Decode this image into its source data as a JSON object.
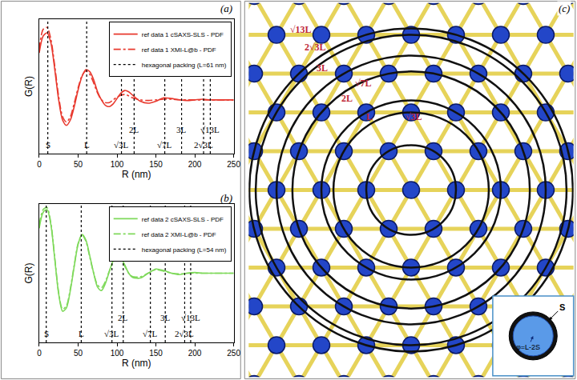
{
  "chart_data": [
    {
      "type": "line",
      "title": "(a)",
      "x_label": "R (nm)",
      "y_label": "G(R)",
      "x": [
        0,
        5,
        10,
        15,
        20,
        25,
        30,
        35,
        40,
        45,
        50,
        55,
        60,
        65,
        70,
        75,
        80,
        85,
        90,
        95,
        100,
        105,
        110,
        115,
        120,
        130,
        140,
        150,
        160,
        170,
        180,
        190,
        200,
        210,
        220,
        230,
        240,
        250
      ],
      "series": [
        {
          "name": "ref data 1 cSAXS-SLS - PDF",
          "color": "#e8392e",
          "line_style": "solid",
          "values": [
            0.7,
            0.95,
            1.0,
            0.85,
            0.45,
            0.0,
            -0.3,
            -0.38,
            -0.3,
            -0.1,
            0.15,
            0.35,
            0.45,
            0.42,
            0.3,
            0.12,
            0.0,
            -0.08,
            -0.1,
            -0.06,
            0.02,
            0.1,
            0.14,
            0.12,
            0.07,
            -0.02,
            -0.05,
            -0.02,
            0.03,
            0.02,
            0.0,
            -0.01,
            0.0,
            0.01,
            0.0,
            0.0,
            0.0,
            0.0
          ]
        },
        {
          "name": "ref data 1 XMI-L@b - PDF",
          "color": "#e8392e",
          "line_style": "dashdot",
          "values": [
            0.75,
            1.05,
            1.08,
            0.9,
            0.5,
            0.05,
            -0.25,
            -0.33,
            -0.25,
            -0.05,
            0.18,
            0.36,
            0.43,
            0.38,
            0.25,
            0.1,
            0.0,
            -0.04,
            -0.04,
            0.0,
            0.04,
            0.07,
            0.08,
            0.06,
            0.03,
            0.0,
            -0.01,
            0.0,
            0.01,
            0.01,
            0.0,
            0.0,
            0.0,
            0.0,
            0.0,
            0.0,
            0.0,
            0.0
          ]
        }
      ],
      "reference_lines": {
        "name": "hexagonal packing (L=61 nm)",
        "color": "#000000",
        "line_style": "dot",
        "lines": [
          {
            "label": "S",
            "x": 11
          },
          {
            "label": "L",
            "x": 61
          },
          {
            "label": "√3L",
            "x": 105.7
          },
          {
            "label": "2L",
            "x": 122
          },
          {
            "label": "√7L",
            "x": 161.4
          },
          {
            "label": "3L",
            "x": 183
          },
          {
            "label": "2√3L",
            "x": 211.3
          },
          {
            "label": "√13L",
            "x": 219.9
          }
        ]
      },
      "xlim": [
        0,
        250
      ],
      "xticks": [
        0,
        50,
        100,
        150,
        200,
        250
      ],
      "ylim": [
        -0.8,
        1.2
      ],
      "yticks": [],
      "tick_labels": "x",
      "grid": false,
      "legend": "upper right"
    },
    {
      "type": "line",
      "title": "(b)",
      "x_label": "R (nm)",
      "y_label": "G(R)",
      "x": [
        0,
        5,
        10,
        15,
        20,
        25,
        30,
        35,
        40,
        45,
        50,
        55,
        60,
        65,
        70,
        75,
        80,
        85,
        90,
        95,
        100,
        105,
        110,
        115,
        120,
        130,
        140,
        150,
        160,
        170,
        180,
        190,
        200,
        210,
        220,
        230,
        240,
        250
      ],
      "series": [
        {
          "name": "ref data 2 cSAXS-SLS - PDF",
          "color": "#7fd95b",
          "line_style": "solid",
          "values": [
            0.65,
            0.88,
            0.92,
            0.7,
            0.2,
            -0.3,
            -0.55,
            -0.5,
            -0.25,
            0.1,
            0.42,
            0.56,
            0.48,
            0.25,
            0.0,
            -0.2,
            -0.25,
            -0.15,
            0.02,
            0.18,
            0.26,
            0.22,
            0.12,
            0.0,
            -0.06,
            -0.07,
            0.0,
            0.06,
            0.04,
            0.0,
            -0.02,
            0.0,
            0.01,
            0.0,
            0.0,
            0.0,
            0.0,
            0.0
          ]
        },
        {
          "name": "ref data 2 XMI-L@b - PDF",
          "color": "#7fd95b",
          "line_style": "dashdot",
          "values": [
            0.7,
            0.92,
            0.95,
            0.72,
            0.22,
            -0.28,
            -0.52,
            -0.47,
            -0.22,
            0.12,
            0.43,
            0.55,
            0.46,
            0.23,
            0.0,
            -0.17,
            -0.21,
            -0.12,
            0.03,
            0.16,
            0.23,
            0.19,
            0.1,
            0.0,
            -0.05,
            -0.05,
            0.0,
            0.05,
            0.03,
            0.0,
            -0.01,
            0.0,
            0.0,
            0.0,
            0.0,
            0.0,
            0.0,
            0.0
          ]
        }
      ],
      "reference_lines": {
        "name": "hexagonal packing (L=54 nm)",
        "color": "#000000",
        "line_style": "dot",
        "lines": [
          {
            "label": "S",
            "x": 9
          },
          {
            "label": "L",
            "x": 54
          },
          {
            "label": "√3L",
            "x": 93.5
          },
          {
            "label": "2L",
            "x": 108
          },
          {
            "label": "√7L",
            "x": 142.9
          },
          {
            "label": "3L",
            "x": 162
          },
          {
            "label": "2√3L",
            "x": 187
          },
          {
            "label": "√13L",
            "x": 194.7
          }
        ]
      },
      "xlim": [
        0,
        250
      ],
      "xticks": [
        0,
        50,
        100,
        150,
        200,
        250
      ],
      "ylim": [
        -1,
        1
      ],
      "yticks": [],
      "tick_labels": "x",
      "grid": false,
      "legend": "upper right"
    }
  ],
  "diagram": {
    "title": "(c)",
    "circles": [
      {
        "label": "L",
        "radius": 1
      },
      {
        "label": "√3L",
        "radius": 1.732
      },
      {
        "label": "2L",
        "radius": 2
      },
      {
        "label": "√7L",
        "radius": 2.646
      },
      {
        "label": "3L",
        "radius": 3
      },
      {
        "label": "2√3L",
        "radius": 3.464
      },
      {
        "label": "√13L",
        "radius": 3.606
      }
    ],
    "inset": {
      "ring_label": "S",
      "core_label": "φ=L-2S"
    }
  }
}
